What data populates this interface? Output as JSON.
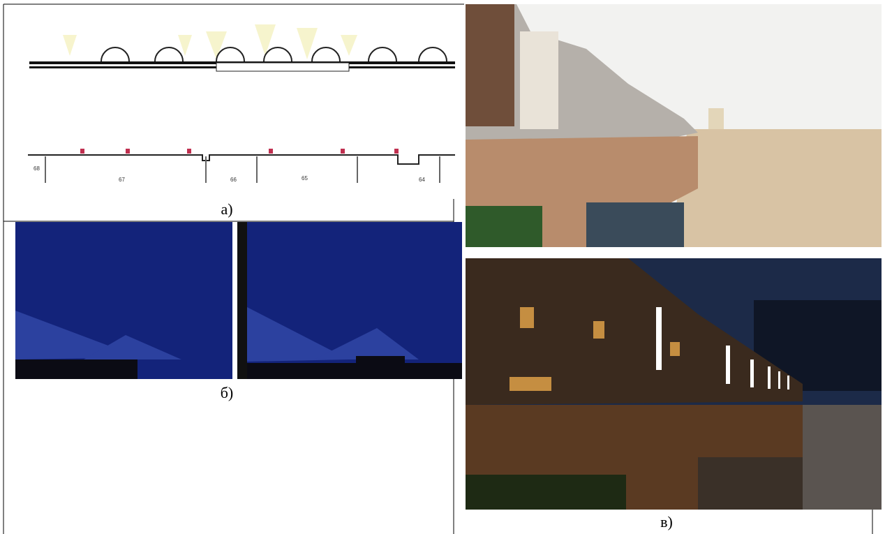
{
  "figure": {
    "captions": [
      "а)",
      "б)",
      "в)"
    ],
    "drawing_labels": [
      "68",
      "67",
      "66",
      "65",
      "64"
    ]
  }
}
